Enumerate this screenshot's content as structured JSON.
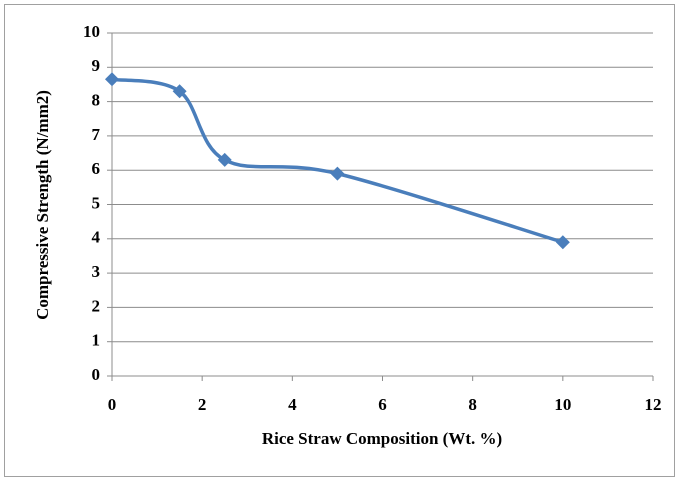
{
  "chart_data": {
    "type": "line",
    "x_label": "Rice Straw Composition (Wt. %)",
    "y_label": "Compressive Strength (N/mm2)",
    "x": [
      0,
      1.5,
      2.5,
      5,
      10
    ],
    "series": [
      {
        "color": "#4a7ebb",
        "values": [
          8.65,
          8.3,
          6.3,
          5.9,
          3.9
        ]
      }
    ],
    "xlim": [
      0,
      12
    ],
    "xticks": [
      0,
      2,
      4,
      6,
      8,
      10,
      12
    ],
    "ylim": [
      0,
      10
    ],
    "yticks": [
      0,
      1,
      2,
      3,
      4,
      5,
      6,
      7,
      8,
      9,
      10
    ],
    "grid": true,
    "smooth": true,
    "marker": "diamond"
  }
}
